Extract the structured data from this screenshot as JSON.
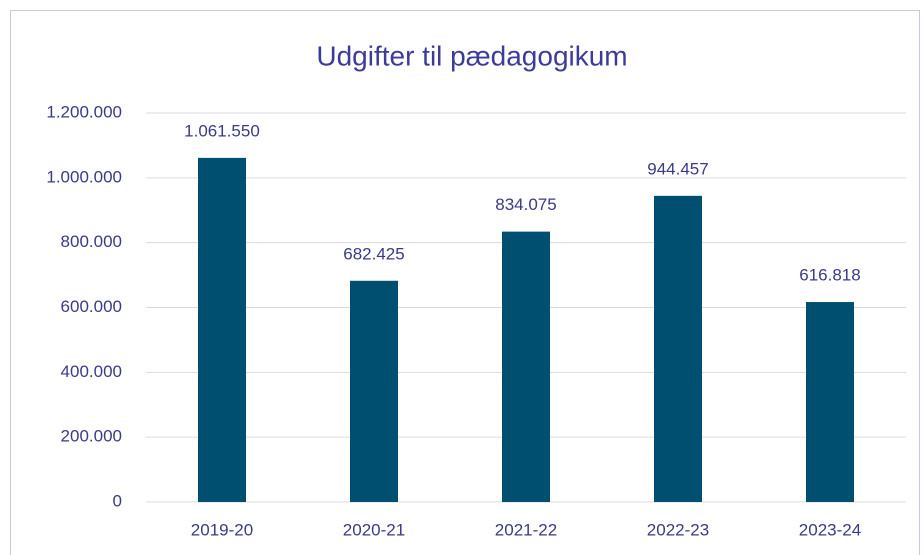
{
  "chart_data": {
    "type": "bar",
    "title": "Udgifter til pædagogikum",
    "categories": [
      "2019-20",
      "2020-21",
      "2021-22",
      "2022-23",
      "2023-24"
    ],
    "values": [
      1061550,
      682425,
      834075,
      944457,
      616818
    ],
    "value_labels": [
      "1.061.550",
      "682.425",
      "834.075",
      "944.457",
      "616.818"
    ],
    "color": "#004f71",
    "ylim": [
      0,
      1200000
    ],
    "yticks": [
      0,
      {
        "value": 200000,
        "label": "200.000"
      },
      {
        "value": 400000,
        "label": "400.000"
      },
      {
        "value": 600000,
        "label": "600.000"
      },
      {
        "value": 800000,
        "label": "800.000"
      },
      {
        "value": 1000000,
        "label": "1.000.000"
      },
      {
        "value": 1200000,
        "label": "1.200.000"
      }
    ],
    "grid": true
  }
}
